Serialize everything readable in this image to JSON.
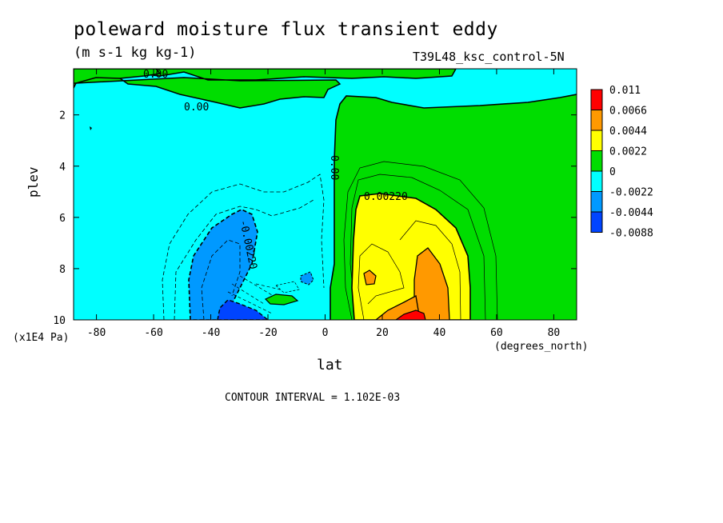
{
  "chart_data": {
    "type": "heatmap",
    "title": "poleward moisture flux transient eddy",
    "subtitle": "(m s-1 kg kg-1)",
    "run_label": "T39L48_ksc_control-5N",
    "xlabel": "lat",
    "x_units": "(degrees_north)",
    "ylabel": "plev",
    "y_units": "(x1E4 Pa)",
    "xlim": [
      -88,
      88
    ],
    "ylim": [
      10,
      0.2
    ],
    "x_ticks": [
      -80,
      -60,
      -40,
      -20,
      0,
      20,
      40,
      60,
      80
    ],
    "y_ticks": [
      2,
      4,
      6,
      8,
      10
    ],
    "contour_interval_text": "CONTOUR INTERVAL = 1.102E-03",
    "contour_labels": [
      "0.00",
      "0.00",
      "0.00",
      "0.00220",
      "-0.00220"
    ],
    "legend": {
      "placement": "right",
      "levels": [
        "0.011",
        "0.0066",
        "0.0044",
        "0.0022",
        "0",
        "-0.0022",
        "-0.0044",
        "-0.0088"
      ],
      "colors": [
        "#ff0000",
        "#ff9900",
        "#ffff00",
        "#00dd00",
        "#00ffff",
        "#0099ff",
        "#0044ff"
      ]
    },
    "field_colors": {
      "cyan": "#00ffff",
      "green": "#00dd00",
      "yellow": "#ffff00",
      "orange": "#ff9900",
      "red": "#ff0000",
      "lightblue": "#0099ff",
      "blue": "#0044ff"
    }
  }
}
